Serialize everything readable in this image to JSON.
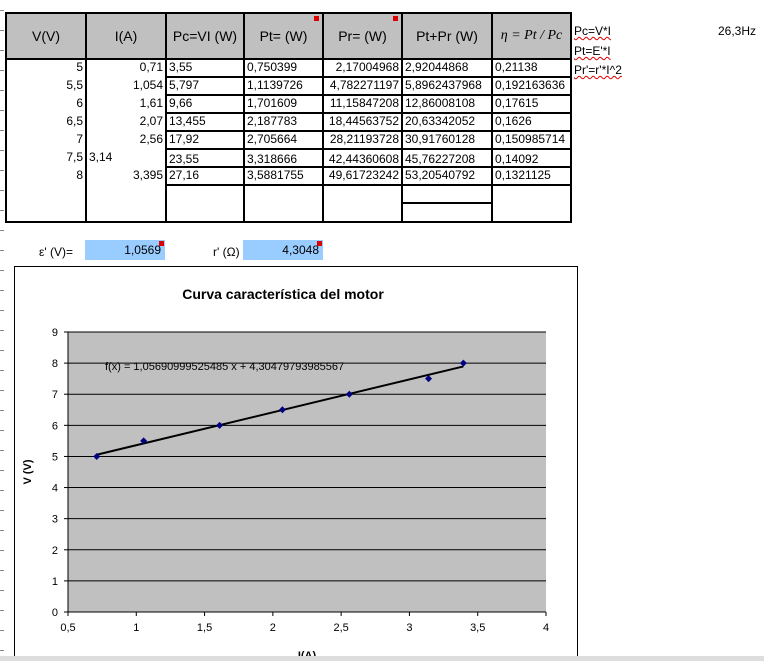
{
  "table": {
    "headers": [
      "V(V)",
      "I(A)",
      "Pc=VI (W)",
      "Pt= (W)",
      "Pr= (W)",
      "Pt+Pr (W)",
      "η = Pt / Pc"
    ],
    "rows": [
      [
        "5",
        "0,71",
        "3,55",
        "0,750399",
        "2,17004968",
        "2,92044868",
        "0,21138"
      ],
      [
        "5,5",
        "1,054",
        "5,797",
        "1,1139726",
        "4,782271197",
        "5,8962437968",
        "0,192163636"
      ],
      [
        "6",
        "1,61",
        "9,66",
        "1,701609",
        "11,15847208",
        "12,86008108",
        "0,17615"
      ],
      [
        "6,5",
        "2,07",
        "13,455",
        "2,187783",
        "18,44563752",
        "20,63342052",
        "0,1626"
      ],
      [
        "7",
        "2,56",
        "17,92",
        "2,705664",
        "28,21193728",
        "30,91760128",
        "0,150985714"
      ],
      [
        "7,5",
        "3,14",
        "23,55",
        "3,318666",
        "42,44360608",
        "45,76227208",
        "0,14092"
      ],
      [
        "8",
        "3,395",
        "27,16",
        "3,5881755",
        "49,61723242",
        "53,20540792",
        "0,1321125"
      ]
    ]
  },
  "side_notes": {
    "pc": "Pc=V*I",
    "pt": "Pt=E'*I",
    "pr": "Pr'=r'*I^2",
    "freq": "26,3Hz"
  },
  "params": {
    "eps_label": "ε' (V)=",
    "eps_value": "1,0569",
    "r_label": "r' (Ω)",
    "r_value": "4,3048"
  },
  "colors": {
    "header_bg": "#c0c0c0",
    "input_bg": "#99ccff",
    "plot_bg": "#c0c0c0",
    "marker": "#000080"
  },
  "chart_data": {
    "type": "scatter",
    "title": "Curva característica del motor",
    "xlabel": "I(A)",
    "ylabel": "V (V)",
    "xlim": [
      0.5,
      4
    ],
    "ylim": [
      0,
      9
    ],
    "xticks": [
      "0,5",
      "1",
      "1,5",
      "2",
      "2,5",
      "3",
      "3,5",
      "4"
    ],
    "yticks": [
      "0",
      "1",
      "2",
      "3",
      "4",
      "5",
      "6",
      "7",
      "8",
      "9"
    ],
    "points": [
      {
        "x": 0.71,
        "y": 5
      },
      {
        "x": 1.054,
        "y": 5.5
      },
      {
        "x": 1.61,
        "y": 6
      },
      {
        "x": 2.07,
        "y": 6.5
      },
      {
        "x": 2.56,
        "y": 7
      },
      {
        "x": 3.14,
        "y": 7.5
      },
      {
        "x": 3.395,
        "y": 8
      }
    ],
    "trendline": {
      "slope": 1.05690999525485,
      "intercept": 4.30479793985567,
      "label": "f(x) = 1,05690999525485 x + 4,30479793985567"
    },
    "grid": "horizontal"
  }
}
